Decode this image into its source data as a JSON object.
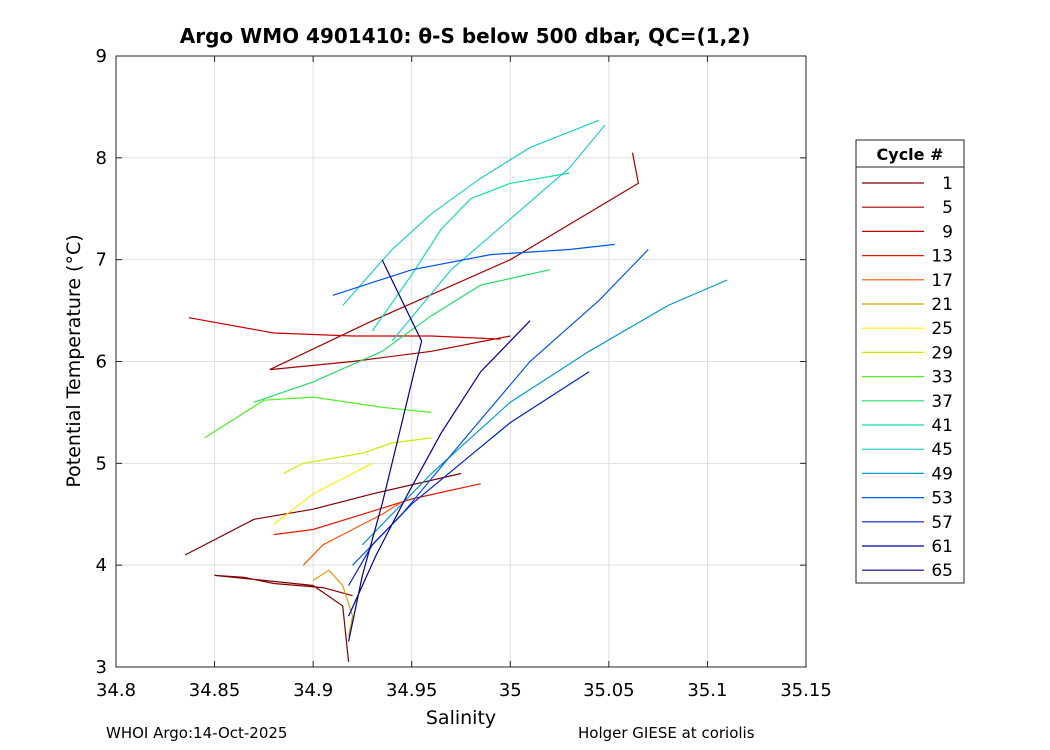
{
  "chart_data": {
    "type": "line",
    "title": "Argo WMO 4901410: θ-S below 500 dbar,  QC=(1,2)",
    "xlabel": "Salinity",
    "ylabel": "Potential Temperature (°C)",
    "xlim": [
      34.8,
      35.15
    ],
    "ylim": [
      3,
      9
    ],
    "xticks": [
      "34.8",
      "34.85",
      "34.9",
      "34.95",
      "35",
      "35.05",
      "35.1",
      "35.15"
    ],
    "yticks": [
      "3",
      "4",
      "5",
      "6",
      "7",
      "8",
      "9"
    ],
    "grid": true,
    "legend": {
      "title": "Cycle #",
      "position": "right",
      "entries": [
        {
          "label": "1",
          "color": "#800000"
        },
        {
          "label": "5",
          "color": "#a50000"
        },
        {
          "label": "9",
          "color": "#cc0000"
        },
        {
          "label": "13",
          "color": "#e61a00"
        },
        {
          "label": "17",
          "color": "#ff5500"
        },
        {
          "label": "21",
          "color": "#d4a000"
        },
        {
          "label": "25",
          "color": "#ffee00"
        },
        {
          "label": "29",
          "color": "#bff200"
        },
        {
          "label": "33",
          "color": "#55ee22"
        },
        {
          "label": "37",
          "color": "#22dd66"
        },
        {
          "label": "41",
          "color": "#11e0aa"
        },
        {
          "label": "45",
          "color": "#22cccc"
        },
        {
          "label": "49",
          "color": "#0099cc"
        },
        {
          "label": "53",
          "color": "#0055ee"
        },
        {
          "label": "57",
          "color": "#0022cc"
        },
        {
          "label": "61",
          "color": "#000099"
        },
        {
          "label": "65",
          "color": "#000080"
        }
      ]
    },
    "series": [
      {
        "name": "1",
        "color": "#800000",
        "x": [
          34.835,
          34.87,
          34.9,
          34.93,
          34.975
        ],
        "y": [
          4.1,
          4.45,
          4.55,
          4.7,
          4.9
        ]
      },
      {
        "name": "1b",
        "color": "#800000",
        "x": [
          34.92,
          34.905,
          34.88,
          34.865,
          34.85,
          34.875,
          34.9,
          34.915,
          34.918
        ],
        "y": [
          3.7,
          3.78,
          3.82,
          3.88,
          3.9,
          3.85,
          3.8,
          3.6,
          3.05
        ]
      },
      {
        "name": "5",
        "color": "#a50000",
        "x": [
          34.878,
          34.93,
          35.0,
          35.065,
          35.062
        ],
        "y": [
          5.92,
          6.4,
          7.0,
          7.75,
          8.05
        ]
      },
      {
        "name": "5b",
        "color": "#a50000",
        "x": [
          34.878,
          34.92,
          34.96,
          35.0
        ],
        "y": [
          5.92,
          6.0,
          6.1,
          6.25
        ]
      },
      {
        "name": "9",
        "color": "#cc0000",
        "x": [
          34.837,
          34.88,
          34.92,
          34.96,
          34.995
        ],
        "y": [
          6.43,
          6.28,
          6.25,
          6.25,
          6.22
        ]
      },
      {
        "name": "13",
        "color": "#e61a00",
        "x": [
          34.88,
          34.9,
          34.925,
          34.95,
          34.985
        ],
        "y": [
          4.3,
          4.35,
          4.5,
          4.65,
          4.8
        ]
      },
      {
        "name": "17",
        "color": "#ff5500",
        "x": [
          34.895,
          34.905,
          34.915,
          34.925,
          34.935,
          34.945
        ],
        "y": [
          4.0,
          4.2,
          4.3,
          4.4,
          4.5,
          4.62
        ]
      },
      {
        "name": "21",
        "color": "#d4a000",
        "x": [
          34.9,
          34.908,
          34.915,
          34.92,
          34.918
        ],
        "y": [
          3.85,
          3.95,
          3.8,
          3.5,
          3.3
        ]
      },
      {
        "name": "25",
        "color": "#ffee00",
        "x": [
          34.88,
          34.89,
          34.9,
          34.915,
          34.93
        ],
        "y": [
          4.4,
          4.55,
          4.7,
          4.85,
          5.0
        ]
      },
      {
        "name": "29",
        "color": "#bff200",
        "x": [
          34.885,
          34.895,
          34.91,
          34.925,
          34.94,
          34.96
        ],
        "y": [
          4.9,
          5.0,
          5.05,
          5.1,
          5.2,
          5.25
        ]
      },
      {
        "name": "33",
        "color": "#55ee22",
        "x": [
          34.845,
          34.875,
          34.9,
          34.935,
          34.96
        ],
        "y": [
          5.25,
          5.62,
          5.65,
          5.55,
          5.5
        ]
      },
      {
        "name": "37",
        "color": "#22dd66",
        "x": [
          34.87,
          34.9,
          34.935,
          34.96,
          34.985,
          35.02
        ],
        "y": [
          5.6,
          5.8,
          6.1,
          6.45,
          6.75,
          6.9
        ]
      },
      {
        "name": "41",
        "color": "#11e0aa",
        "x": [
          34.93,
          34.95,
          34.965,
          34.98,
          35.0,
          35.03
        ],
        "y": [
          6.3,
          6.85,
          7.3,
          7.6,
          7.75,
          7.85
        ]
      },
      {
        "name": "45",
        "color": "#22cccc",
        "x": [
          34.915,
          34.94,
          34.96,
          34.985,
          35.01,
          35.045
        ],
        "y": [
          6.55,
          7.1,
          7.45,
          7.8,
          8.1,
          8.37
        ]
      },
      {
        "name": "45b",
        "color": "#22cccc",
        "x": [
          34.94,
          34.97,
          35.0,
          35.03,
          35.048
        ],
        "y": [
          6.2,
          6.9,
          7.4,
          7.9,
          8.32
        ]
      },
      {
        "name": "49",
        "color": "#0099cc",
        "x": [
          34.925,
          34.96,
          35.0,
          35.04,
          35.08,
          35.11
        ],
        "y": [
          4.2,
          4.9,
          5.6,
          6.1,
          6.55,
          6.8
        ]
      },
      {
        "name": "53",
        "color": "#0055ee",
        "x": [
          34.92,
          34.945,
          34.975,
          35.01,
          35.045,
          35.07
        ],
        "y": [
          4.0,
          4.5,
          5.2,
          6.0,
          6.6,
          7.1
        ]
      },
      {
        "name": "53b",
        "color": "#0055ee",
        "x": [
          34.91,
          34.95,
          34.99,
          35.03,
          35.053
        ],
        "y": [
          6.65,
          6.9,
          7.05,
          7.1,
          7.15
        ]
      },
      {
        "name": "57",
        "color": "#0022cc",
        "x": [
          34.918,
          34.93,
          34.95,
          34.975,
          35.0,
          35.04
        ],
        "y": [
          3.8,
          4.2,
          4.6,
          5.0,
          5.4,
          5.9
        ]
      },
      {
        "name": "61",
        "color": "#000099",
        "x": [
          34.918,
          34.932,
          34.948,
          34.965,
          34.985,
          35.01
        ],
        "y": [
          3.5,
          4.1,
          4.7,
          5.3,
          5.9,
          6.4
        ]
      },
      {
        "name": "65",
        "color": "#000080",
        "x": [
          34.918,
          34.925,
          34.935,
          34.945,
          34.955,
          34.935
        ],
        "y": [
          3.25,
          3.9,
          4.6,
          5.4,
          6.2,
          7.0
        ]
      }
    ]
  },
  "footer": {
    "left": "WHOI Argo:14-Oct-2025",
    "right": "Holger GIESE at coriolis"
  }
}
